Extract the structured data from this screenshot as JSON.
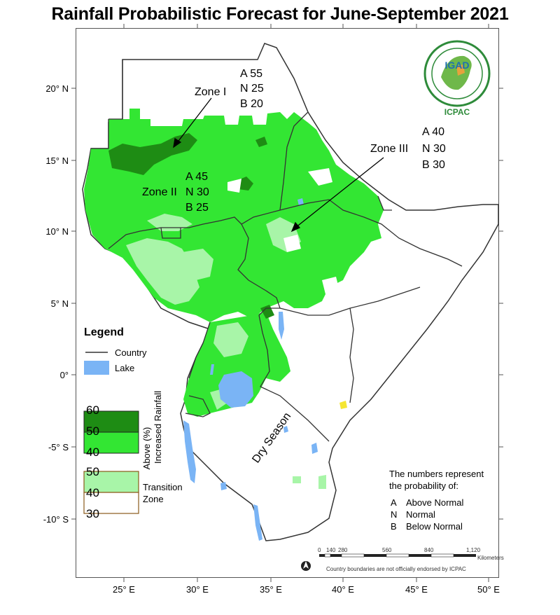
{
  "title": "Rainfall Probabilistic Forecast for June-September 2021",
  "axes": {
    "lat_labels": [
      "20° N",
      "15° N",
      "10° N",
      "5° N",
      "0°",
      "-5° S",
      "-10° S"
    ],
    "lon_labels": [
      "25° E",
      "30° E",
      "35° E",
      "40° E",
      "45° E",
      "50° E"
    ]
  },
  "zones": {
    "zone1": {
      "label": "Zone I",
      "A": "A 55",
      "N": "N 25",
      "B": "B 20"
    },
    "zone2": {
      "label": "Zone II",
      "A": "A 45",
      "N": "N 30",
      "B": "B 25"
    },
    "zone3": {
      "label": "Zone III",
      "A": "A 40",
      "N": "N 30",
      "B": "B 30"
    },
    "dry_season": "Dry Season"
  },
  "legend": {
    "title": "Legend",
    "country": "Country",
    "lake": "Lake",
    "above_levels": [
      "60",
      "50",
      "40"
    ],
    "above_label_1": "Above (%)",
    "above_label_2": "Increased Rainfall",
    "transition_levels": [
      "50",
      "40",
      "30"
    ],
    "transition_label_1": "Transition",
    "transition_label_2": "Zone",
    "colors": {
      "above_60": "#1e8c14",
      "above_50": "#33e633",
      "transition": "#a8f5a8",
      "transition_border": "#8a5a1a",
      "lake": "#7ab4f5",
      "country_line": "#333333",
      "dry_patch": "#ffffff"
    }
  },
  "scale_bar": {
    "ticks": [
      "0",
      "140",
      "280",
      "560",
      "840",
      "1,120"
    ],
    "unit": "Kilometers"
  },
  "north_arrow": "north-arrow",
  "disclaimer": "Country boundaries are not officially endorsed by ICPAC",
  "explanation": {
    "intro_1": "The numbers represent",
    "intro_2": "the probability of:",
    "items": [
      {
        "key": "A",
        "text": "Above Normal"
      },
      {
        "key": "N",
        "text": "Normal"
      },
      {
        "key": "B",
        "text": "Below Normal"
      }
    ]
  },
  "logo": {
    "top": "IGAD",
    "bottom": "ICPAC",
    "ring_top": "INTERGOVERNMENTAL AUTHORITY ON DEVELOPMENT",
    "ring_bottom": "AUTORITE INTERGOUVERNEMENTALE POUR LE DEVELOPPEMENT"
  }
}
